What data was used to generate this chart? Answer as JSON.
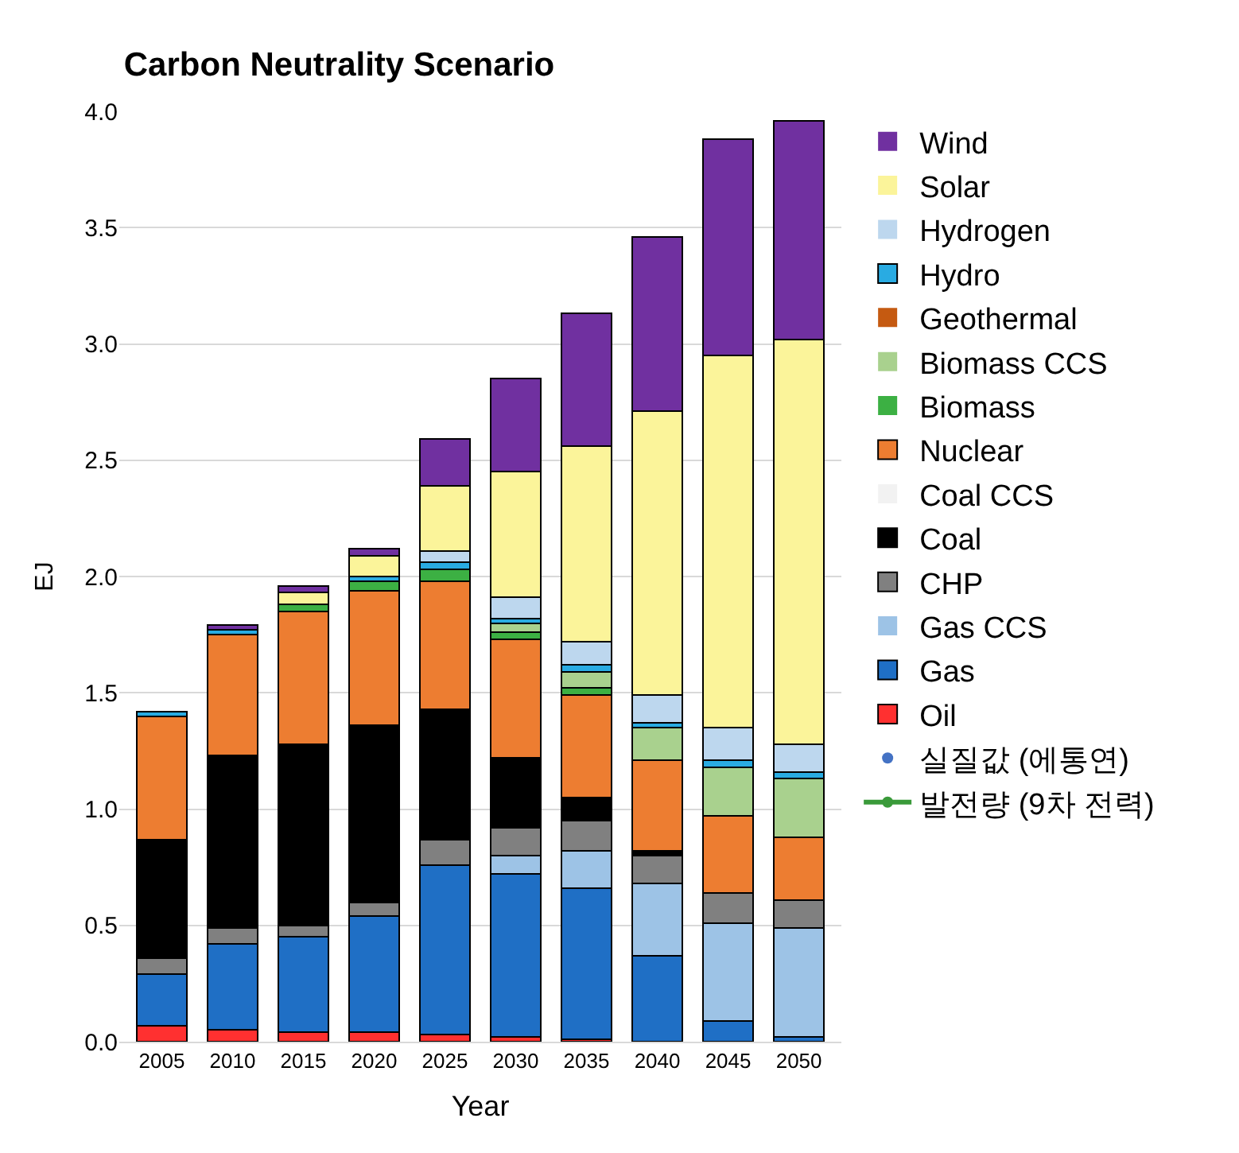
{
  "chart_data": {
    "type": "bar",
    "title": "Carbon Neutrality Scenario",
    "xlabel": "Year",
    "ylabel": "EJ",
    "stacked": true,
    "categories": [
      "2005",
      "2010",
      "2015",
      "2020",
      "2025",
      "2030",
      "2035",
      "2040",
      "2045",
      "2050"
    ],
    "ylim": [
      0,
      4
    ],
    "yticks": [
      {
        "value": 0,
        "label": "0.0"
      },
      0.5,
      {
        "value": 1,
        "label": "1.0"
      },
      1.5,
      {
        "value": 2,
        "label": "2.0"
      },
      2.5,
      {
        "value": 3,
        "label": "3.0"
      },
      3.5,
      {
        "value": 4,
        "label": "4.0"
      }
    ],
    "grid": "y",
    "legend": "right",
    "series": [
      {
        "name": "발전량 (9차 전력)",
        "type": "line",
        "marker": "circle",
        "color": "#3a9a3a",
        "values": [
          null,
          null,
          null,
          null,
          null,
          null,
          null,
          null,
          null,
          null
        ]
      },
      {
        "name": "실질값 (에통연)",
        "type": "scatter",
        "marker": "circle",
        "color": "#4472c4",
        "values": [
          null,
          null,
          null,
          null,
          null,
          null,
          null,
          null,
          null,
          null
        ]
      },
      {
        "name": "Oil",
        "color": "#ff3030",
        "values": [
          0.07,
          0.05,
          0.04,
          0.04,
          0.03,
          0.02,
          0.01,
          0,
          0,
          0
        ]
      },
      {
        "name": "Gas",
        "color": "#1f6fc5",
        "values": [
          0.22,
          0.37,
          0.41,
          0.5,
          0.73,
          0.7,
          0.65,
          0.37,
          0.09,
          0.02
        ]
      },
      {
        "name": "Gas CCS",
        "color": "#9dc3e6",
        "values": [
          0,
          0,
          0,
          0,
          0,
          0.08,
          0.16,
          0.31,
          0.42,
          0.47
        ]
      },
      {
        "name": "CHP",
        "color": "#808080",
        "values": [
          0.07,
          0.07,
          0.05,
          0.06,
          0.11,
          0.12,
          0.13,
          0.12,
          0.13,
          0.12
        ]
      },
      {
        "name": "Coal",
        "color": "#000000",
        "values": [
          0.51,
          0.74,
          0.78,
          0.76,
          0.56,
          0.3,
          0.1,
          0.02,
          0,
          0
        ]
      },
      {
        "name": "Coal CCS",
        "color": "#f2f2f2",
        "values": [
          0,
          0,
          0,
          0,
          0,
          0,
          0,
          0,
          0,
          0
        ]
      },
      {
        "name": "Nuclear",
        "color": "#ed7d31",
        "values": [
          0.53,
          0.52,
          0.57,
          0.58,
          0.55,
          0.51,
          0.44,
          0.39,
          0.33,
          0.27
        ]
      },
      {
        "name": "Biomass",
        "color": "#3cb043",
        "values": [
          0,
          0,
          0.03,
          0.04,
          0.05,
          0.03,
          0.03,
          0,
          0,
          0
        ]
      },
      {
        "name": "Biomass CCS",
        "color": "#a9d18e",
        "values": [
          0,
          0,
          0,
          0,
          0,
          0.04,
          0.07,
          0.14,
          0.21,
          0.25
        ]
      },
      {
        "name": "Geothermal",
        "color": "#c55a11",
        "values": [
          0,
          0,
          0,
          0,
          0,
          0,
          0,
          0,
          0,
          0
        ]
      },
      {
        "name": "Hydro",
        "color": "#29abe2",
        "values": [
          0.02,
          0.02,
          0,
          0.02,
          0.03,
          0.02,
          0.03,
          0.02,
          0.03,
          0.03
        ]
      },
      {
        "name": "Hydrogen",
        "color": "#bdd7ee",
        "values": [
          0,
          0,
          0,
          0,
          0.05,
          0.09,
          0.1,
          0.12,
          0.14,
          0.12
        ]
      },
      {
        "name": "Solar",
        "color": "#fbf49a",
        "values": [
          0,
          0,
          0.05,
          0.09,
          0.28,
          0.54,
          0.84,
          1.22,
          1.6,
          1.74
        ]
      },
      {
        "name": "Wind",
        "color": "#7030a0",
        "values": [
          0,
          0.02,
          0.03,
          0.03,
          0.2,
          0.4,
          0.57,
          0.75,
          0.93,
          0.94
        ]
      }
    ]
  }
}
